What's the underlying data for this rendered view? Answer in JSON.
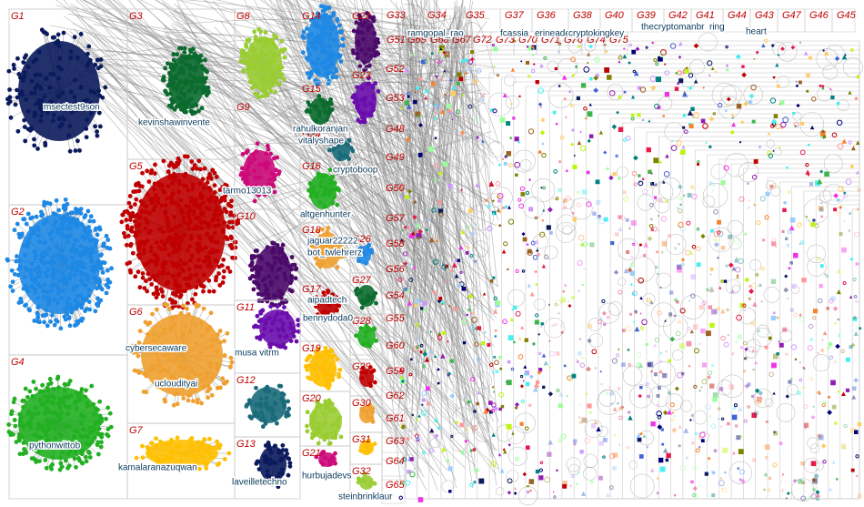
{
  "groups": [
    "G1",
    "G2",
    "G3",
    "G4",
    "G5",
    "G6",
    "G7",
    "G8",
    "G9",
    "G10",
    "G11",
    "G12",
    "G13",
    "G14",
    "G15",
    "G16",
    "G17",
    "G18",
    "G19",
    "G20",
    "G21",
    "G22",
    "G23",
    "G24",
    "G26",
    "G27",
    "G28",
    "G29",
    "G30",
    "G31",
    "G32",
    "G33",
    "G34",
    "G35",
    "G37",
    "G36",
    "G38",
    "G40",
    "G39",
    "G42",
    "G41",
    "G44",
    "G43",
    "G47",
    "G46",
    "G45",
    "G51",
    "G69",
    "G68",
    "G67",
    "G72",
    "G73",
    "G70",
    "G71",
    "G76",
    "G74",
    "G75",
    "G52",
    "G53",
    "G48",
    "G49",
    "G50",
    "G57",
    "G58",
    "G56",
    "G54",
    "G55",
    "G60",
    "G59",
    "G62",
    "G61",
    "G63",
    "G64",
    "G65"
  ],
  "node_labels": [
    "msectest9son",
    "kevinshawinvente",
    "tarmo13013",
    "jaguar22222",
    "bot_twlehrerz",
    "aipadtech",
    "bennydoda0",
    "musa vitrm",
    "cybersecaware",
    "ucloudityai",
    "kamalaranazuqwan",
    "pythonwittob",
    "rahulkoranjan",
    "vitalyshape",
    "cryptoboop",
    "altgenhunter",
    "laveilletechno",
    "hurbujadevs",
    "steinbrinklaur",
    "ramgopal_rao",
    "fcassia",
    "erineader",
    "cryptokingkey",
    "thecryptomanbr",
    "ring",
    "heart"
  ]
}
